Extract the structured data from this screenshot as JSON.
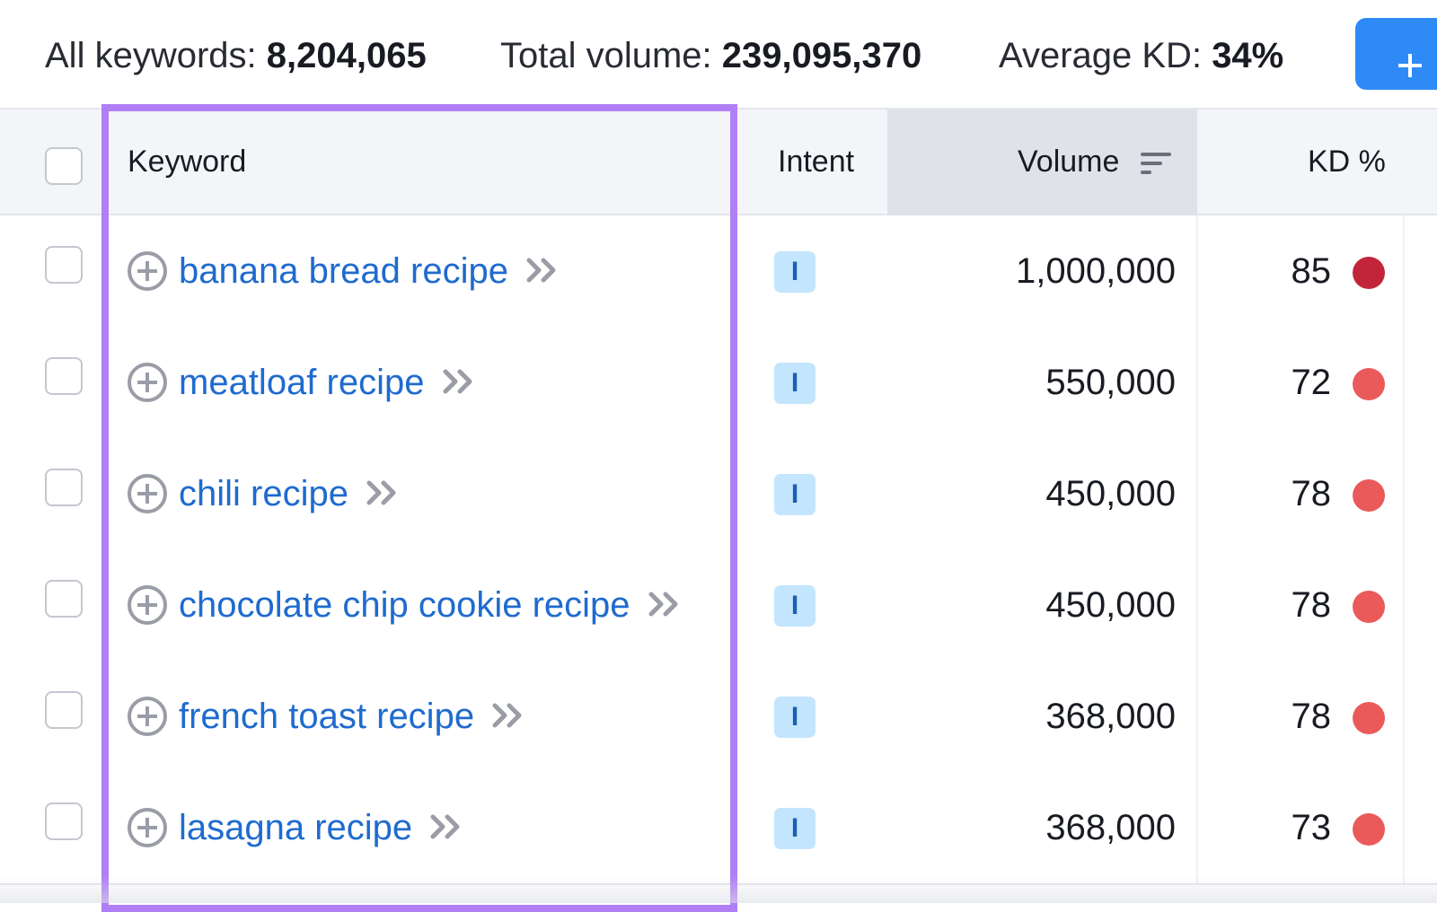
{
  "summary": {
    "all_keywords_label": "All keywords:",
    "all_keywords_value": "8,204,065",
    "total_volume_label": "Total volume:",
    "total_volume_value": "239,095,370",
    "avg_kd_label": "Average KD:",
    "avg_kd_value": "34%"
  },
  "header": {
    "keyword": "Keyword",
    "intent": "Intent",
    "volume": "Volume",
    "kd": "KD %"
  },
  "rows": [
    {
      "keyword": "banana bread recipe",
      "intent": "I",
      "volume": "1,000,000",
      "kd": "85",
      "kd_color": "#c2253a"
    },
    {
      "keyword": "meatloaf recipe",
      "intent": "I",
      "volume": "550,000",
      "kd": "72",
      "kd_color": "#ea5a5a"
    },
    {
      "keyword": "chili recipe",
      "intent": "I",
      "volume": "450,000",
      "kd": "78",
      "kd_color": "#ea5a5a"
    },
    {
      "keyword": "chocolate chip cookie recipe",
      "intent": "I",
      "volume": "450,000",
      "kd": "78",
      "kd_color": "#ea5a5a"
    },
    {
      "keyword": "french toast recipe",
      "intent": "I",
      "volume": "368,000",
      "kd": "78",
      "kd_color": "#ea5a5a"
    },
    {
      "keyword": "lasagna recipe",
      "intent": "I",
      "volume": "368,000",
      "kd": "73",
      "kd_color": "#ea5a5a"
    }
  ],
  "colors": {
    "accent": "#2e8af7",
    "keyword_link": "#1f6bcf",
    "highlight_border": "#b07ff5",
    "intent_badge_bg": "#c4e5fe"
  }
}
